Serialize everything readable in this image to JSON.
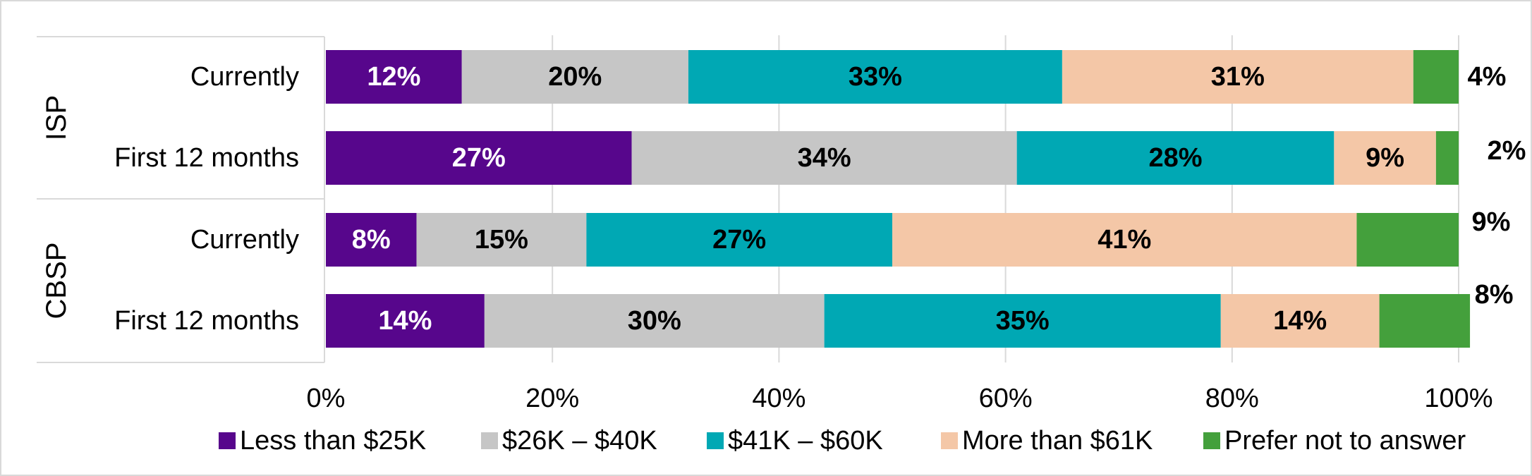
{
  "chart_data": {
    "type": "bar",
    "orientation": "horizontal",
    "stacked": true,
    "percent_stacked": true,
    "groups": [
      {
        "name": "ISP",
        "categories": [
          "Currently",
          "First 12 months"
        ]
      },
      {
        "name": "CBSP",
        "categories": [
          "Currently",
          "First 12 months"
        ]
      }
    ],
    "rows": [
      {
        "group": "ISP",
        "label": "Currently",
        "values": [
          12,
          20,
          33,
          31,
          4
        ]
      },
      {
        "group": "ISP",
        "label": "First 12 months",
        "values": [
          27,
          34,
          28,
          9,
          2
        ]
      },
      {
        "group": "CBSP",
        "label": "Currently",
        "values": [
          8,
          15,
          27,
          41,
          9
        ]
      },
      {
        "group": "CBSP",
        "label": "First 12 months",
        "values": [
          14,
          30,
          35,
          14,
          8
        ]
      }
    ],
    "series": [
      {
        "name": "Less than $25K",
        "color": "#57068c",
        "label_color": "#ffffff"
      },
      {
        "name": "$26K – $40K",
        "color": "#c6c6c6",
        "label_color": "#000000"
      },
      {
        "name": "$41K – $60K",
        "color": "#00a8b4",
        "label_color": "#000000"
      },
      {
        "name": "More than $61K",
        "color": "#f4c7a7",
        "label_color": "#000000"
      },
      {
        "name": "Prefer not to answer",
        "color": "#44a03c",
        "label_color": "#000000"
      }
    ],
    "xaxis": {
      "min": 0,
      "max": 100,
      "ticks": [
        0,
        20,
        40,
        60,
        80,
        100
      ],
      "tick_labels": [
        "0%",
        "20%",
        "40%",
        "60%",
        "80%",
        "100%"
      ]
    },
    "value_suffix": "%",
    "legend_position": "bottom",
    "grid": true
  }
}
